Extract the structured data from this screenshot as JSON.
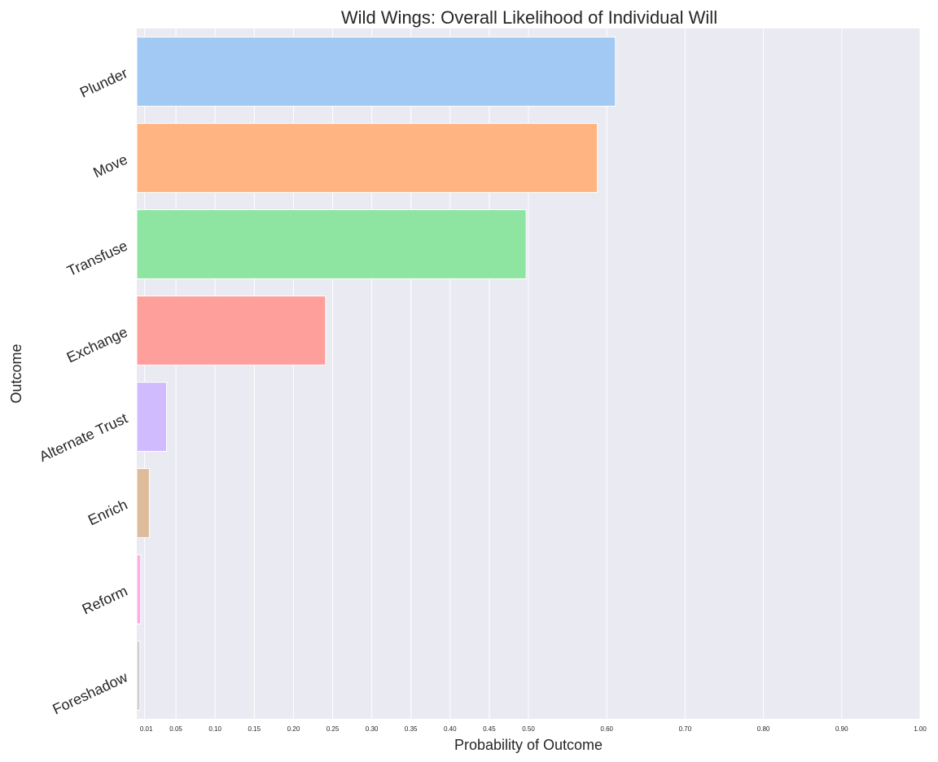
{
  "chart_data": {
    "type": "bar",
    "orientation": "horizontal",
    "title": "Wild Wings: Overall Likelihood of Individual Will",
    "xlabel": "Probability of Outcome",
    "ylabel": "Outcome",
    "xlim": [
      0,
      1.0
    ],
    "xticks": [
      0.01,
      0.05,
      0.1,
      0.15,
      0.2,
      0.25,
      0.3,
      0.35,
      0.4,
      0.45,
      0.5,
      0.6,
      0.7,
      0.8,
      0.9,
      1.0
    ],
    "xtick_labels": [
      "0.01",
      "0.05",
      "0.10",
      "0.15",
      "0.20",
      "0.25",
      "0.30",
      "0.35",
      "0.40",
      "0.45",
      "0.50",
      "0.60",
      "0.70",
      "0.80",
      "0.90",
      "1.00"
    ],
    "categories": [
      "Plunder",
      "Move",
      "Transfuse",
      "Exchange",
      "Alternate Trust",
      "Enrich",
      "Reform",
      "Foreshadow"
    ],
    "values": [
      0.611,
      0.588,
      0.497,
      0.241,
      0.038,
      0.016,
      0.005,
      0.004
    ],
    "colors": [
      "#a1c9f4",
      "#ffb482",
      "#8de5a1",
      "#ff9f9b",
      "#d0bbff",
      "#debb9b",
      "#fab0e4",
      "#cfcfcf"
    ],
    "background": "#eaeaf2",
    "grid": true,
    "grid_axis": "x"
  }
}
